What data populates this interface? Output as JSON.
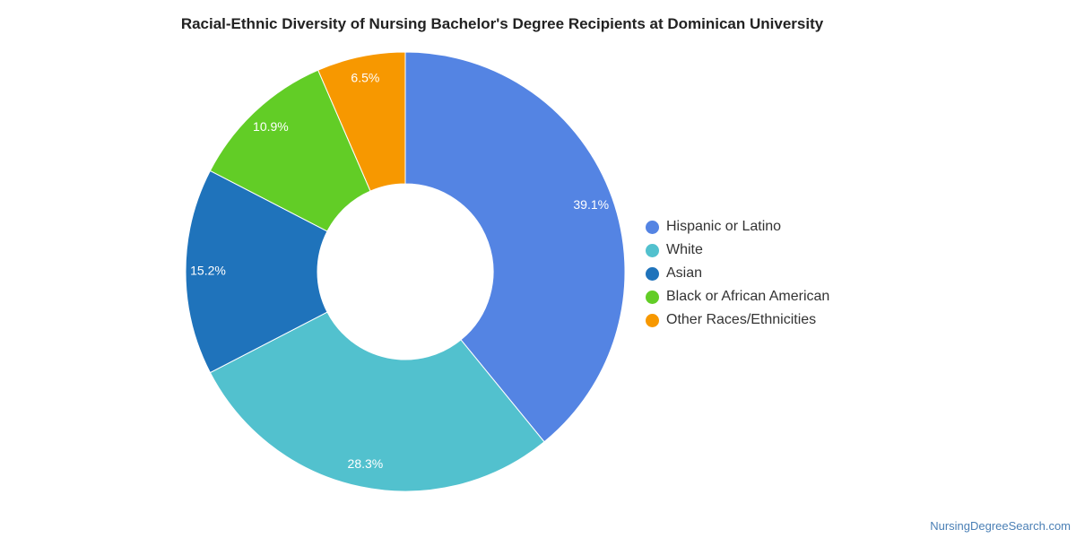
{
  "chart_data": {
    "type": "pie",
    "title": "Racial-Ethnic Diversity of Nursing Bachelor's Degree Recipients at Dominican University",
    "donut": true,
    "legend_position": "right",
    "slices": [
      {
        "label": "Hispanic or Latino",
        "value": 39.1,
        "display": "39.1%",
        "color": "#5484e3"
      },
      {
        "label": "White",
        "value": 28.3,
        "display": "28.3%",
        "color": "#52c1ce"
      },
      {
        "label": "Asian",
        "value": 15.2,
        "display": "15.2%",
        "color": "#1f73bb"
      },
      {
        "label": "Black or African American",
        "value": 10.9,
        "display": "10.9%",
        "color": "#62cd26"
      },
      {
        "label": "Other Races/Ethnicities",
        "value": 6.5,
        "display": "6.5%",
        "color": "#f79800"
      }
    ]
  },
  "watermark": "NursingDegreeSearch.com"
}
